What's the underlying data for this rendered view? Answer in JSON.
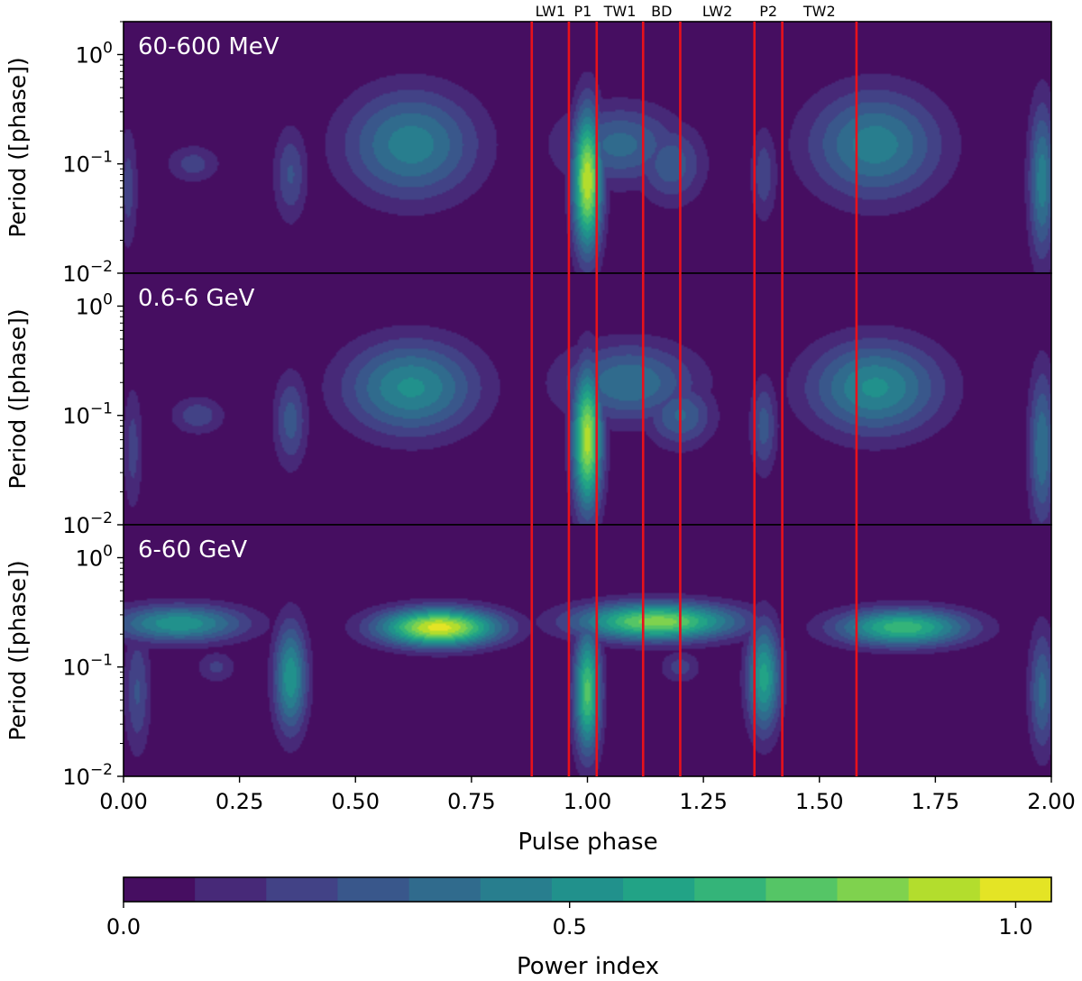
{
  "chart_data": {
    "type": "heatmap",
    "xlabel": "Pulse phase",
    "ylabel": "Period ([phase])",
    "xlim": [
      0.0,
      2.0
    ],
    "ylim": [
      0.01,
      2.0
    ],
    "yscale": "log",
    "x_ticks": [
      0.0,
      0.25,
      0.5,
      0.75,
      1.0,
      1.25,
      1.5,
      1.75,
      2.0
    ],
    "x_tick_labels": [
      "0.00",
      "0.25",
      "0.50",
      "0.75",
      "1.00",
      "1.25",
      "1.50",
      "1.75",
      "2.00"
    ],
    "y_ticks": [
      1.0,
      0.1,
      0.01
    ],
    "y_tick_labels": [
      {
        "base": "10",
        "exp": "0"
      },
      {
        "base": "10",
        "exp": "−1"
      },
      {
        "base": "10",
        "exp": "−2"
      }
    ],
    "vertical_lines": {
      "color": "#e8111b",
      "phases": [
        0.88,
        0.96,
        1.02,
        1.12,
        1.2,
        1.36,
        1.42,
        1.58
      ]
    },
    "region_labels": [
      {
        "text": "LW1",
        "phase": 0.92
      },
      {
        "text": "P1",
        "phase": 0.99
      },
      {
        "text": "TW1",
        "phase": 1.07
      },
      {
        "text": "BD",
        "phase": 1.16
      },
      {
        "text": "LW2",
        "phase": 1.28
      },
      {
        "text": "P2",
        "phase": 1.39
      },
      {
        "text": "TW2",
        "phase": 1.5
      }
    ],
    "panels": [
      {
        "label": "60-600 MeV",
        "blobs": [
          {
            "x": 0.15,
            "period": 0.1,
            "power": 0.2,
            "sx": 0.04,
            "sy": 0.12
          },
          {
            "x": 0.36,
            "period": 0.08,
            "power": 0.25,
            "sx": 0.025,
            "sy": 0.3
          },
          {
            "x": 0.62,
            "period": 0.15,
            "power": 0.45,
            "sx": 0.1,
            "sy": 0.35
          },
          {
            "x": 1.0,
            "period": 0.07,
            "power": 0.95,
            "sx": 0.022,
            "sy": 0.45
          },
          {
            "x": 1.07,
            "period": 0.15,
            "power": 0.35,
            "sx": 0.09,
            "sy": 0.25
          },
          {
            "x": 1.18,
            "period": 0.1,
            "power": 0.3,
            "sx": 0.05,
            "sy": 0.25
          },
          {
            "x": 1.38,
            "period": 0.08,
            "power": 0.22,
            "sx": 0.02,
            "sy": 0.3
          },
          {
            "x": 1.62,
            "period": 0.15,
            "power": 0.45,
            "sx": 0.1,
            "sy": 0.35
          },
          {
            "x": 1.98,
            "period": 0.07,
            "power": 0.45,
            "sx": 0.02,
            "sy": 0.5
          },
          {
            "x": 0.01,
            "period": 0.06,
            "power": 0.2,
            "sx": 0.015,
            "sy": 0.4
          }
        ]
      },
      {
        "label": "0.6-6 GeV",
        "blobs": [
          {
            "x": 0.16,
            "period": 0.1,
            "power": 0.22,
            "sx": 0.04,
            "sy": 0.12
          },
          {
            "x": 0.36,
            "period": 0.09,
            "power": 0.28,
            "sx": 0.025,
            "sy": 0.3
          },
          {
            "x": 0.62,
            "period": 0.18,
            "power": 0.5,
            "sx": 0.1,
            "sy": 0.3
          },
          {
            "x": 1.0,
            "period": 0.06,
            "power": 0.92,
            "sx": 0.022,
            "sy": 0.45
          },
          {
            "x": 1.09,
            "period": 0.2,
            "power": 0.4,
            "sx": 0.1,
            "sy": 0.25
          },
          {
            "x": 1.2,
            "period": 0.1,
            "power": 0.33,
            "sx": 0.05,
            "sy": 0.2
          },
          {
            "x": 1.38,
            "period": 0.08,
            "power": 0.28,
            "sx": 0.02,
            "sy": 0.3
          },
          {
            "x": 1.62,
            "period": 0.18,
            "power": 0.5,
            "sx": 0.1,
            "sy": 0.3
          },
          {
            "x": 1.98,
            "period": 0.05,
            "power": 0.4,
            "sx": 0.02,
            "sy": 0.5
          },
          {
            "x": 0.02,
            "period": 0.05,
            "power": 0.2,
            "sx": 0.015,
            "sy": 0.4
          }
        ]
      },
      {
        "label": "6-60 GeV",
        "blobs": [
          {
            "x": 0.12,
            "period": 0.25,
            "power": 0.55,
            "sx": 0.1,
            "sy": 0.12
          },
          {
            "x": 0.36,
            "period": 0.08,
            "power": 0.55,
            "sx": 0.025,
            "sy": 0.35
          },
          {
            "x": 0.68,
            "period": 0.23,
            "power": 1.0,
            "sx": 0.09,
            "sy": 0.12
          },
          {
            "x": 0.2,
            "period": 0.1,
            "power": 0.18,
            "sx": 0.03,
            "sy": 0.1
          },
          {
            "x": 1.0,
            "period": 0.06,
            "power": 0.75,
            "sx": 0.02,
            "sy": 0.4
          },
          {
            "x": 1.15,
            "period": 0.26,
            "power": 0.85,
            "sx": 0.12,
            "sy": 0.12
          },
          {
            "x": 1.38,
            "period": 0.08,
            "power": 0.6,
            "sx": 0.025,
            "sy": 0.35
          },
          {
            "x": 1.68,
            "period": 0.23,
            "power": 0.7,
            "sx": 0.1,
            "sy": 0.12
          },
          {
            "x": 1.2,
            "period": 0.1,
            "power": 0.2,
            "sx": 0.03,
            "sy": 0.1
          },
          {
            "x": 1.98,
            "period": 0.06,
            "power": 0.35,
            "sx": 0.02,
            "sy": 0.4
          },
          {
            "x": 0.03,
            "period": 0.06,
            "power": 0.25,
            "sx": 0.02,
            "sy": 0.4
          }
        ]
      }
    ],
    "colorbar": {
      "label": "Power index",
      "range": [
        0.0,
        1.04
      ],
      "ticks": [
        0.0,
        0.5,
        1.0
      ],
      "tick_labels": [
        "0.0",
        "0.5",
        "1.0"
      ],
      "colors": [
        "#440154",
        "#482475",
        "#414487",
        "#355f8d",
        "#2a788e",
        "#21918c",
        "#22a884",
        "#44bf70",
        "#7ad151",
        "#bddf26",
        "#fde725"
      ],
      "levels": 13
    }
  }
}
